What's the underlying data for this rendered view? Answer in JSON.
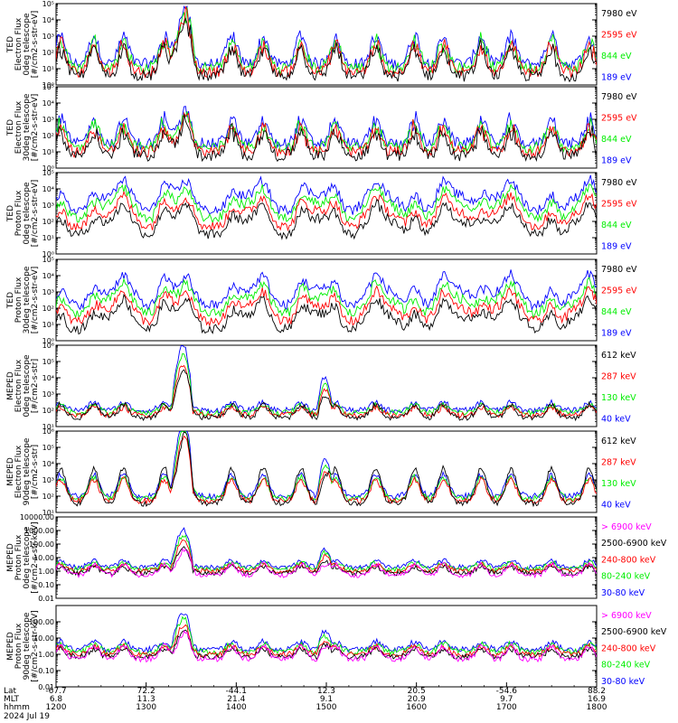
{
  "chart_data": {
    "type": "line",
    "date": "2024 Jul 19",
    "colors": {
      "black": "#000000",
      "red": "#ff0000",
      "green": "#00ee00",
      "blue": "#0000ff",
      "magenta": "#ff00ff"
    },
    "panels": [
      {
        "ylabel": [
          "TED",
          "Electron Flux",
          "0deg telescope",
          "[#/cm2-s-str-eV]"
        ],
        "ylog": [
          0,
          5
        ],
        "tick_labels": [
          "10⁰",
          "10¹",
          "10²",
          "10³",
          "10⁴",
          "10⁵"
        ],
        "legend": [
          {
            "text": "7980 eV",
            "color": "black"
          },
          {
            "text": "2595 eV",
            "color": "red"
          },
          {
            "text": "844 eV",
            "color": "green"
          },
          {
            "text": "189 eV",
            "color": "blue"
          }
        ],
        "pattern": "ted_electron",
        "base": 1.3,
        "peak": 3.3
      },
      {
        "ylabel": [
          "TED",
          "Electron Flux",
          "30deg telescope",
          "[#/cm2-s-str-eV]"
        ],
        "ylog": [
          0,
          5
        ],
        "tick_labels": [
          "10⁰",
          "10¹",
          "10²",
          "10³",
          "10⁴",
          "10⁵"
        ],
        "legend": [
          {
            "text": "7980 eV",
            "color": "black"
          },
          {
            "text": "2595 eV",
            "color": "red"
          },
          {
            "text": "844 eV",
            "color": "green"
          },
          {
            "text": "189 eV",
            "color": "blue"
          }
        ],
        "pattern": "ted_electron",
        "base": 1.5,
        "peak": 2.3
      },
      {
        "ylabel": [
          "TED",
          "Proton Flux",
          "0deg telescope",
          "[#/cm2-s-str-eV]"
        ],
        "ylog": [
          0,
          5
        ],
        "tick_labels": [
          "10⁰",
          "10¹",
          "10²",
          "10³",
          "10⁴",
          "10⁵"
        ],
        "legend": [
          {
            "text": "7980 eV",
            "color": "black"
          },
          {
            "text": "2595 eV",
            "color": "red"
          },
          {
            "text": "844 eV",
            "color": "green"
          },
          {
            "text": "189 eV",
            "color": "blue"
          }
        ],
        "pattern": "ted_proton",
        "base": 2.7,
        "peak": 3.6
      },
      {
        "ylabel": [
          "TED",
          "Proton Flux",
          "30deg telescope",
          "[#/cm2-s-str-eV]"
        ],
        "ylog": [
          0,
          5
        ],
        "tick_labels": [
          "10⁰",
          "10¹",
          "10²",
          "10³",
          "10⁴",
          "10⁵"
        ],
        "legend": [
          {
            "text": "7980 eV",
            "color": "black"
          },
          {
            "text": "2595 eV",
            "color": "red"
          },
          {
            "text": "844 eV",
            "color": "green"
          },
          {
            "text": "189 eV",
            "color": "blue"
          }
        ],
        "pattern": "ted_proton",
        "base": 2.2,
        "peak": 3.6
      },
      {
        "ylabel": [
          "MEPED",
          "Electron Flux",
          "0deg telescope",
          "[#/cm2-s-str]"
        ],
        "ylog": [
          1,
          6
        ],
        "tick_labels": [
          "10¹",
          "10²",
          "10³",
          "10⁴",
          "10⁵",
          "10⁶"
        ],
        "legend": [
          {
            "text": "612 keV",
            "color": "black"
          },
          {
            "text": "287 keV",
            "color": "red"
          },
          {
            "text": "130 keV",
            "color": "green"
          },
          {
            "text": "40 keV",
            "color": "blue"
          }
        ],
        "pattern": "meped_e0",
        "base": 2.0,
        "peak": 5.6
      },
      {
        "ylabel": [
          "MEPED",
          "Electron Flux",
          "90deg telescope",
          "[#/cm2-s-str]"
        ],
        "ylog": [
          1,
          6
        ],
        "tick_labels": [
          "10¹",
          "10²",
          "10³",
          "10⁴",
          "10⁵",
          "10⁶"
        ],
        "legend": [
          {
            "text": "612 keV",
            "color": "black"
          },
          {
            "text": "287 keV",
            "color": "red"
          },
          {
            "text": "130 keV",
            "color": "green"
          },
          {
            "text": "40 keV",
            "color": "blue"
          }
        ],
        "pattern": "meped_e90",
        "base": 2.0,
        "peak": 5.8
      },
      {
        "ylabel": [
          "MEPED",
          "Proton Flux",
          "0deg telescope",
          "[#/cm2-s-str-keV]"
        ],
        "ylog": [
          -2,
          4
        ],
        "tick_labels": [
          "0.01",
          "0.10",
          "1.00",
          "10.00",
          "100.00",
          "1000.00",
          "10000.00"
        ],
        "legend": [
          {
            "text": "> 6900 keV",
            "color": "magenta"
          },
          {
            "text": "2500-6900 keV",
            "color": "black"
          },
          {
            "text": "240-800 keV",
            "color": "red"
          },
          {
            "text": "80-240 keV",
            "color": "green"
          },
          {
            "text": "30-80 keV",
            "color": "blue"
          }
        ],
        "pattern": "meped_p",
        "base": 0.3,
        "peak": 2.7
      },
      {
        "ylabel": [
          "MEPED",
          "Proton Flux",
          "90deg telescope",
          "[#/cm2-s-str-keV]"
        ],
        "ylog": [
          -2,
          3
        ],
        "tick_labels": [
          "0.01",
          "0.10",
          "1.00",
          "10.00",
          "100.00"
        ],
        "legend": [
          {
            "text": "> 6900 keV",
            "color": "magenta"
          },
          {
            "text": "2500-6900 keV",
            "color": "black"
          },
          {
            "text": "240-800 keV",
            "color": "red"
          },
          {
            "text": "80-240 keV",
            "color": "green"
          },
          {
            "text": "30-80 keV",
            "color": "blue"
          }
        ],
        "pattern": "meped_p",
        "base": 0.3,
        "peak": 2.2
      }
    ],
    "x_axis": {
      "row_labels": [
        "Lat",
        "MLT",
        "hhmm"
      ],
      "ticks": [
        {
          "hhmm": "1200",
          "lat": "-67.7",
          "mlt": "6.8"
        },
        {
          "hhmm": "1300",
          "lat": "72.2",
          "mlt": "11.3"
        },
        {
          "hhmm": "1400",
          "lat": "-44.1",
          "mlt": "21.4"
        },
        {
          "hhmm": "1500",
          "lat": "12.3",
          "mlt": "9.1"
        },
        {
          "hhmm": "1600",
          "lat": "20.5",
          "mlt": "20.9"
        },
        {
          "hhmm": "1700",
          "lat": "-54.6",
          "mlt": "9.7"
        },
        {
          "hhmm": "1800",
          "lat": "88.2",
          "mlt": "16.9"
        }
      ],
      "range_hours": [
        12,
        18
      ]
    }
  }
}
